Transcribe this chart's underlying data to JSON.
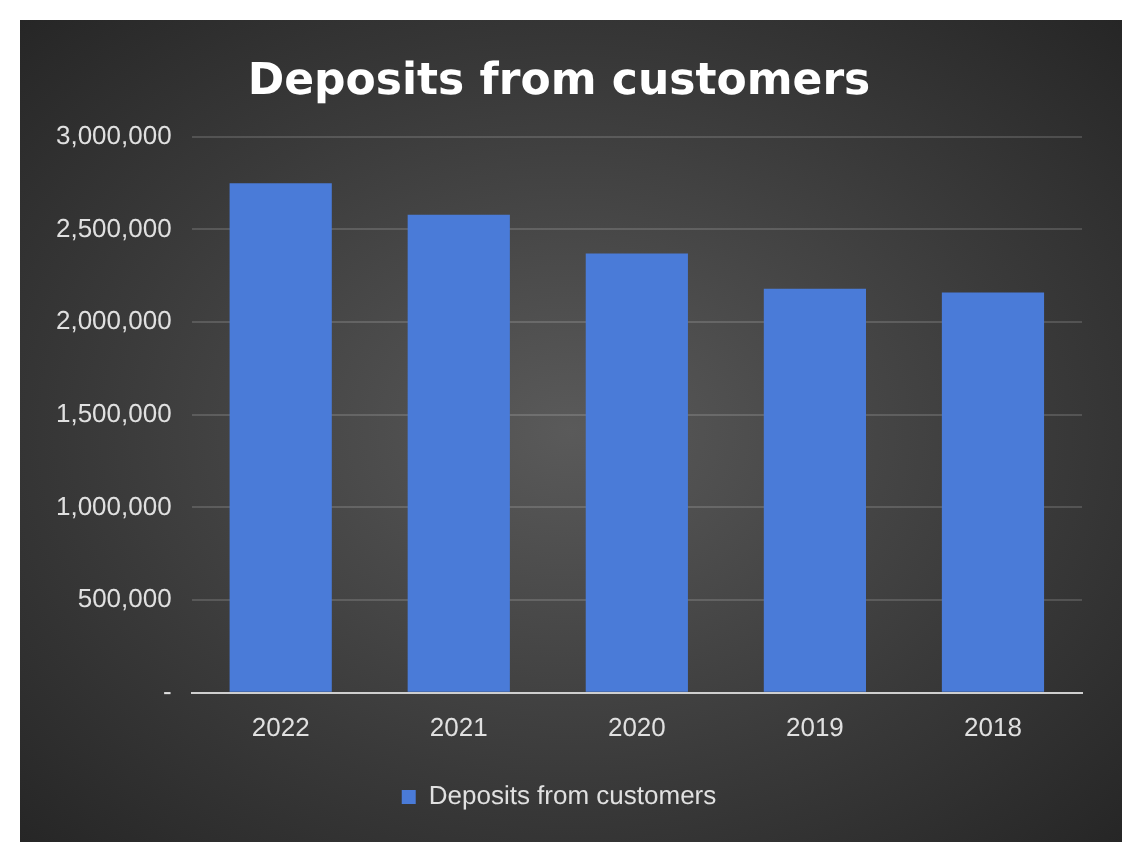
{
  "chart_data": {
    "type": "bar",
    "title": "Deposits from customers",
    "categories": [
      "2022",
      "2021",
      "2020",
      "2019",
      "2018"
    ],
    "series": [
      {
        "name": "Deposits from customers",
        "color": "#4a7bd8",
        "values": [
          2750000,
          2580000,
          2370000,
          2180000,
          2160000
        ]
      }
    ],
    "ylim": [
      0,
      3000000
    ],
    "yticks": [
      {
        "value": 0,
        "label": "-"
      },
      {
        "value": 500000,
        "label": "500,000"
      },
      {
        "value": 1000000,
        "label": "1,000,000"
      },
      {
        "value": 1500000,
        "label": "1,500,000"
      },
      {
        "value": 2000000,
        "label": "2,000,000"
      },
      {
        "value": 2500000,
        "label": "2,500,000"
      },
      {
        "value": 3000000,
        "label": "3,000,000"
      }
    ],
    "grid": "y",
    "legend": "bottom"
  }
}
